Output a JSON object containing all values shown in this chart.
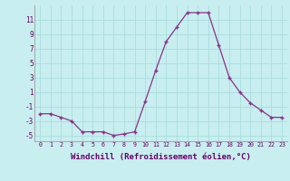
{
  "x": [
    0,
    1,
    2,
    3,
    4,
    5,
    6,
    7,
    8,
    9,
    10,
    11,
    12,
    13,
    14,
    15,
    16,
    17,
    18,
    19,
    20,
    21,
    22,
    23
  ],
  "y": [
    -2,
    -2,
    -2.5,
    -3,
    -4.5,
    -4.5,
    -4.5,
    -5,
    -4.8,
    -4.5,
    -0.3,
    4,
    8,
    10,
    12,
    12,
    12,
    7.5,
    3,
    1,
    -0.5,
    -1.5,
    -2.5,
    -2.5
  ],
  "line_color": "#883388",
  "marker": "+",
  "bg_color": "#c8eef0",
  "grid_color": "#aadddd",
  "xlabel": "Windchill (Refroidissement éolien,°C)",
  "xtick_labels": [
    "0",
    "1",
    "2",
    "3",
    "4",
    "5",
    "6",
    "7",
    "8",
    "9",
    "10",
    "11",
    "12",
    "13",
    "14",
    "15",
    "16",
    "17",
    "18",
    "19",
    "20",
    "21",
    "22",
    "23"
  ],
  "ytick_vals": [
    -5,
    -3,
    -1,
    1,
    3,
    5,
    7,
    9,
    11
  ],
  "xlim": [
    -0.5,
    23.5
  ],
  "ylim": [
    -5.8,
    13.0
  ]
}
